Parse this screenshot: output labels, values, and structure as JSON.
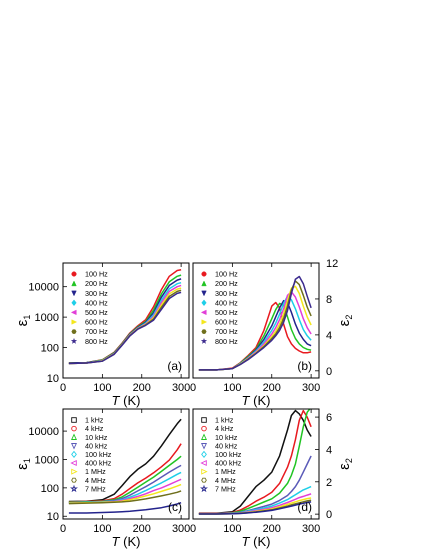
{
  "chart_data": [
    {
      "id": "a",
      "type": "line",
      "panel_tag": "(a)",
      "xlabel": "T (K)",
      "ylabel": "ε1",
      "xlim": [
        0,
        320
      ],
      "xticks": [
        0,
        100,
        200,
        300
      ],
      "yscale": "log",
      "ylim": [
        10,
        60000
      ],
      "yticks": [
        10,
        100,
        1000,
        10000
      ],
      "ytick_labels": [
        "10",
        "100",
        "1000",
        "10000"
      ],
      "legend": "top-left",
      "x": [
        15,
        60,
        100,
        130,
        150,
        170,
        190,
        210,
        230,
        250,
        270,
        290,
        300
      ],
      "series": [
        {
          "name": "100 Hz",
          "color": "#e8191f",
          "marker": "circle",
          "values": [
            31,
            32,
            40,
            70,
            140,
            300,
            520,
            820,
            2200,
            8000,
            22000,
            34000,
            36000
          ]
        },
        {
          "name": "200 Hz",
          "color": "#21c423",
          "marker": "triangle-up",
          "values": [
            31,
            32,
            39,
            68,
            135,
            285,
            480,
            720,
            1700,
            5800,
            14500,
            22000,
            24000
          ]
        },
        {
          "name": "300 Hz",
          "color": "#23238c",
          "marker": "triangle-down",
          "values": [
            31,
            32,
            38,
            66,
            130,
            275,
            460,
            670,
            1400,
            4500,
            11000,
            16500,
            18000
          ]
        },
        {
          "name": "400 Hz",
          "color": "#1ecfe8",
          "marker": "diamond",
          "values": [
            30,
            31,
            38,
            64,
            128,
            265,
            440,
            630,
            1200,
            3600,
            8500,
            12500,
            13500
          ]
        },
        {
          "name": "500 Hz",
          "color": "#e23ed8",
          "marker": "triangle-left",
          "values": [
            30,
            31,
            37,
            63,
            126,
            258,
            430,
            600,
            1050,
            3000,
            7000,
            10000,
            11000
          ]
        },
        {
          "name": "600 Hz",
          "color": "#f4e71c",
          "marker": "triangle-right",
          "values": [
            30,
            31,
            37,
            62,
            124,
            252,
            420,
            575,
            950,
            2500,
            5800,
            8300,
            9000
          ]
        },
        {
          "name": "700 Hz",
          "color": "#6f6f1c",
          "marker": "hexagon",
          "values": [
            30,
            31,
            36,
            61,
            122,
            247,
            410,
            555,
            870,
            2100,
            4800,
            7000,
            7600
          ]
        },
        {
          "name": "800 Hz",
          "color": "#3b2a8e",
          "marker": "star",
          "values": [
            30,
            31,
            36,
            60,
            120,
            242,
            400,
            540,
            800,
            1800,
            4100,
            6000,
            6500
          ]
        }
      ]
    },
    {
      "id": "b",
      "type": "line",
      "panel_tag": "(b)",
      "xlabel": "T (K)",
      "ylabel": "ε2",
      "y_axis_side": "right",
      "xlim": [
        0,
        320
      ],
      "xticks": [
        0,
        100,
        200,
        300
      ],
      "ylim": [
        -0.8,
        12
      ],
      "yticks": [
        0,
        4,
        8,
        12
      ],
      "legend": "top-left",
      "x": [
        15,
        60,
        100,
        120,
        140,
        160,
        180,
        200,
        210,
        220,
        230,
        240,
        250,
        260,
        270,
        280,
        290,
        300
      ],
      "series": [
        {
          "name": "100 Hz",
          "color": "#e8191f",
          "marker": "circle",
          "values": [
            0.1,
            0.1,
            0.3,
            0.9,
            1.7,
            2.6,
            4.5,
            7.2,
            7.6,
            7.0,
            5.2,
            3.8,
            3.0,
            2.5,
            2.2,
            2.0,
            2.0,
            2.1
          ]
        },
        {
          "name": "200 Hz",
          "color": "#21c423",
          "marker": "triangle-up",
          "values": [
            0.1,
            0.1,
            0.25,
            0.85,
            1.6,
            2.4,
            3.9,
            5.8,
            6.8,
            7.5,
            7.3,
            6.0,
            4.6,
            3.6,
            3.0,
            2.6,
            2.4,
            2.3
          ]
        },
        {
          "name": "300 Hz",
          "color": "#23238c",
          "marker": "triangle-down",
          "values": [
            0.1,
            0.1,
            0.25,
            0.8,
            1.5,
            2.3,
            3.5,
            5.0,
            6.0,
            7.0,
            7.8,
            7.6,
            6.5,
            5.2,
            4.2,
            3.5,
            3.0,
            2.8
          ]
        },
        {
          "name": "400 Hz",
          "color": "#1ecfe8",
          "marker": "diamond",
          "values": [
            0.1,
            0.1,
            0.25,
            0.8,
            1.45,
            2.2,
            3.2,
            4.5,
            5.3,
            6.3,
            7.5,
            8.3,
            7.9,
            6.9,
            5.7,
            4.6,
            3.9,
            3.4
          ]
        },
        {
          "name": "500 Hz",
          "color": "#e23ed8",
          "marker": "triangle-left",
          "values": [
            0.1,
            0.1,
            0.25,
            0.75,
            1.4,
            2.1,
            3.0,
            4.1,
            4.8,
            5.7,
            6.9,
            8.4,
            8.8,
            8.2,
            7.1,
            5.8,
            4.8,
            4.1
          ]
        },
        {
          "name": "600 Hz",
          "color": "#f4e71c",
          "marker": "triangle-right",
          "values": [
            0.1,
            0.1,
            0.25,
            0.75,
            1.35,
            2.0,
            2.8,
            3.8,
            4.4,
            5.2,
            6.3,
            7.8,
            9.2,
            9.4,
            8.6,
            7.2,
            6.0,
            5.1
          ]
        },
        {
          "name": "700 Hz",
          "color": "#6f6f1c",
          "marker": "hexagon",
          "values": [
            0.1,
            0.1,
            0.25,
            0.7,
            1.3,
            1.95,
            2.7,
            3.6,
            4.1,
            4.8,
            5.8,
            7.2,
            9.0,
            10.0,
            9.6,
            8.4,
            7.1,
            6.1
          ]
        },
        {
          "name": "800 Hz",
          "color": "#3b2a8e",
          "marker": "star",
          "values": [
            0.1,
            0.1,
            0.25,
            0.7,
            1.25,
            1.9,
            2.6,
            3.4,
            3.9,
            4.5,
            5.4,
            6.7,
            8.6,
            10.2,
            10.5,
            9.7,
            8.3,
            7.0
          ]
        }
      ]
    },
    {
      "id": "c",
      "type": "line",
      "panel_tag": "(c)",
      "xlabel": "T (K)",
      "ylabel": "ε1",
      "xlim": [
        0,
        320
      ],
      "xticks": [
        0,
        100,
        200,
        300
      ],
      "yscale": "log",
      "ylim": [
        8,
        60000
      ],
      "yticks": [
        10,
        100,
        1000,
        10000
      ],
      "ytick_labels": [
        "10",
        "100",
        "1000",
        "10000"
      ],
      "legend": "top-left",
      "x": [
        15,
        60,
        100,
        130,
        150,
        170,
        190,
        210,
        230,
        250,
        270,
        290,
        300
      ],
      "series": [
        {
          "name": "1 kHz",
          "color": "#111111",
          "marker": "square-open",
          "values": [
            33,
            34,
            38,
            60,
            120,
            250,
            450,
            700,
            1300,
            3000,
            7500,
            18000,
            26000
          ]
        },
        {
          "name": "4 kHz",
          "color": "#e8191f",
          "marker": "circle-open",
          "values": [
            32,
            33,
            35,
            42,
            60,
            95,
            150,
            220,
            340,
            550,
            950,
            2200,
            3600
          ]
        },
        {
          "name": "10 kHz",
          "color": "#21c423",
          "marker": "triangle-up-open",
          "values": [
            31,
            32,
            34,
            38,
            48,
            70,
            105,
            160,
            240,
            380,
            620,
            1000,
            1300
          ]
        },
        {
          "name": "40 kHz",
          "color": "#5a5ab8",
          "marker": "triangle-down-open",
          "values": [
            30,
            31,
            33,
            36,
            42,
            55,
            78,
            110,
            160,
            240,
            360,
            520,
            620
          ]
        },
        {
          "name": "100 kHz",
          "color": "#1ecfe8",
          "marker": "diamond-open",
          "values": [
            30,
            31,
            32,
            34,
            38,
            47,
            60,
            80,
            110,
            150,
            210,
            300,
            350
          ]
        },
        {
          "name": "400 kHz",
          "color": "#e23ed8",
          "marker": "triangle-left-open",
          "values": [
            29,
            30,
            31,
            33,
            36,
            42,
            50,
            62,
            80,
            100,
            130,
            175,
            200
          ]
        },
        {
          "name": "1 MHz",
          "color": "#f4e71c",
          "marker": "triangle-right-open",
          "values": [
            29,
            30,
            31,
            32,
            34,
            38,
            44,
            52,
            62,
            75,
            92,
            115,
            130
          ]
        },
        {
          "name": "4 MHz",
          "color": "#6f6f1c",
          "marker": "hexagon-open",
          "values": [
            28,
            29,
            30,
            31,
            32,
            34,
            37,
            41,
            46,
            52,
            60,
            70,
            78
          ]
        },
        {
          "name": "7 MHz",
          "color": "#23238c",
          "marker": "star-open",
          "values": [
            13,
            13,
            13.5,
            14,
            14.5,
            15,
            16,
            17,
            18.5,
            20,
            23,
            27,
            30
          ]
        }
      ]
    },
    {
      "id": "d",
      "type": "line",
      "panel_tag": "(d)",
      "xlabel": "T (K)",
      "ylabel": "ε2",
      "y_axis_side": "right",
      "xlim": [
        0,
        320
      ],
      "xticks": [
        0,
        100,
        200,
        300
      ],
      "ylim": [
        -0.3,
        6.5
      ],
      "yticks": [
        0,
        2,
        4,
        6
      ],
      "legend": "top-left",
      "x": [
        15,
        60,
        100,
        120,
        140,
        160,
        180,
        200,
        220,
        240,
        250,
        260,
        270,
        280,
        290,
        300
      ],
      "series": [
        {
          "name": "1 kHz",
          "color": "#111111",
          "marker": "square-open",
          "values": [
            0.05,
            0.05,
            0.15,
            0.5,
            1.1,
            1.7,
            2.1,
            2.6,
            3.6,
            5.2,
            6.1,
            6.4,
            6.2,
            5.8,
            5.2,
            4.8
          ]
        },
        {
          "name": "4 kHz",
          "color": "#e8191f",
          "marker": "circle-open",
          "values": [
            0.04,
            0.04,
            0.1,
            0.25,
            0.5,
            0.8,
            1.05,
            1.35,
            1.9,
            2.9,
            3.6,
            4.6,
            5.8,
            6.4,
            6.0,
            5.4
          ]
        },
        {
          "name": "10 kHz",
          "color": "#21c423",
          "marker": "triangle-up-open",
          "values": [
            0.03,
            0.03,
            0.08,
            0.18,
            0.35,
            0.55,
            0.75,
            0.95,
            1.3,
            1.9,
            2.4,
            3.1,
            4.2,
            5.4,
            6.3,
            6.6
          ]
        },
        {
          "name": "40 kHz",
          "color": "#5a5ab8",
          "marker": "triangle-down-open",
          "values": [
            0.02,
            0.02,
            0.06,
            0.12,
            0.22,
            0.35,
            0.48,
            0.62,
            0.85,
            1.15,
            1.4,
            1.7,
            2.1,
            2.6,
            3.1,
            3.6
          ]
        },
        {
          "name": "100 kHz",
          "color": "#1ecfe8",
          "marker": "diamond-open",
          "values": [
            0.02,
            0.02,
            0.05,
            0.1,
            0.18,
            0.28,
            0.38,
            0.5,
            0.68,
            0.9,
            1.05,
            1.2,
            1.35,
            1.5,
            1.6,
            1.7
          ]
        },
        {
          "name": "400 kHz",
          "color": "#e23ed8",
          "marker": "triangle-left-open",
          "values": [
            0.02,
            0.02,
            0.04,
            0.08,
            0.14,
            0.22,
            0.3,
            0.4,
            0.55,
            0.72,
            0.82,
            0.92,
            1.02,
            1.1,
            1.18,
            1.25
          ]
        },
        {
          "name": "1 MHz",
          "color": "#f4e71c",
          "marker": "triangle-right-open",
          "values": [
            0.01,
            0.01,
            0.03,
            0.06,
            0.11,
            0.17,
            0.24,
            0.32,
            0.45,
            0.6,
            0.68,
            0.76,
            0.84,
            0.9,
            0.96,
            1.0
          ]
        },
        {
          "name": "4 MHz",
          "color": "#6f6f1c",
          "marker": "hexagon-open",
          "values": [
            0.01,
            0.01,
            0.02,
            0.05,
            0.09,
            0.14,
            0.2,
            0.27,
            0.38,
            0.5,
            0.57,
            0.64,
            0.7,
            0.76,
            0.82,
            0.86
          ]
        },
        {
          "name": "7 MHz",
          "color": "#23238c",
          "marker": "star-open",
          "values": [
            0.01,
            0.01,
            0.02,
            0.04,
            0.08,
            0.12,
            0.17,
            0.23,
            0.33,
            0.44,
            0.5,
            0.56,
            0.62,
            0.67,
            0.72,
            0.76
          ]
        }
      ]
    }
  ]
}
